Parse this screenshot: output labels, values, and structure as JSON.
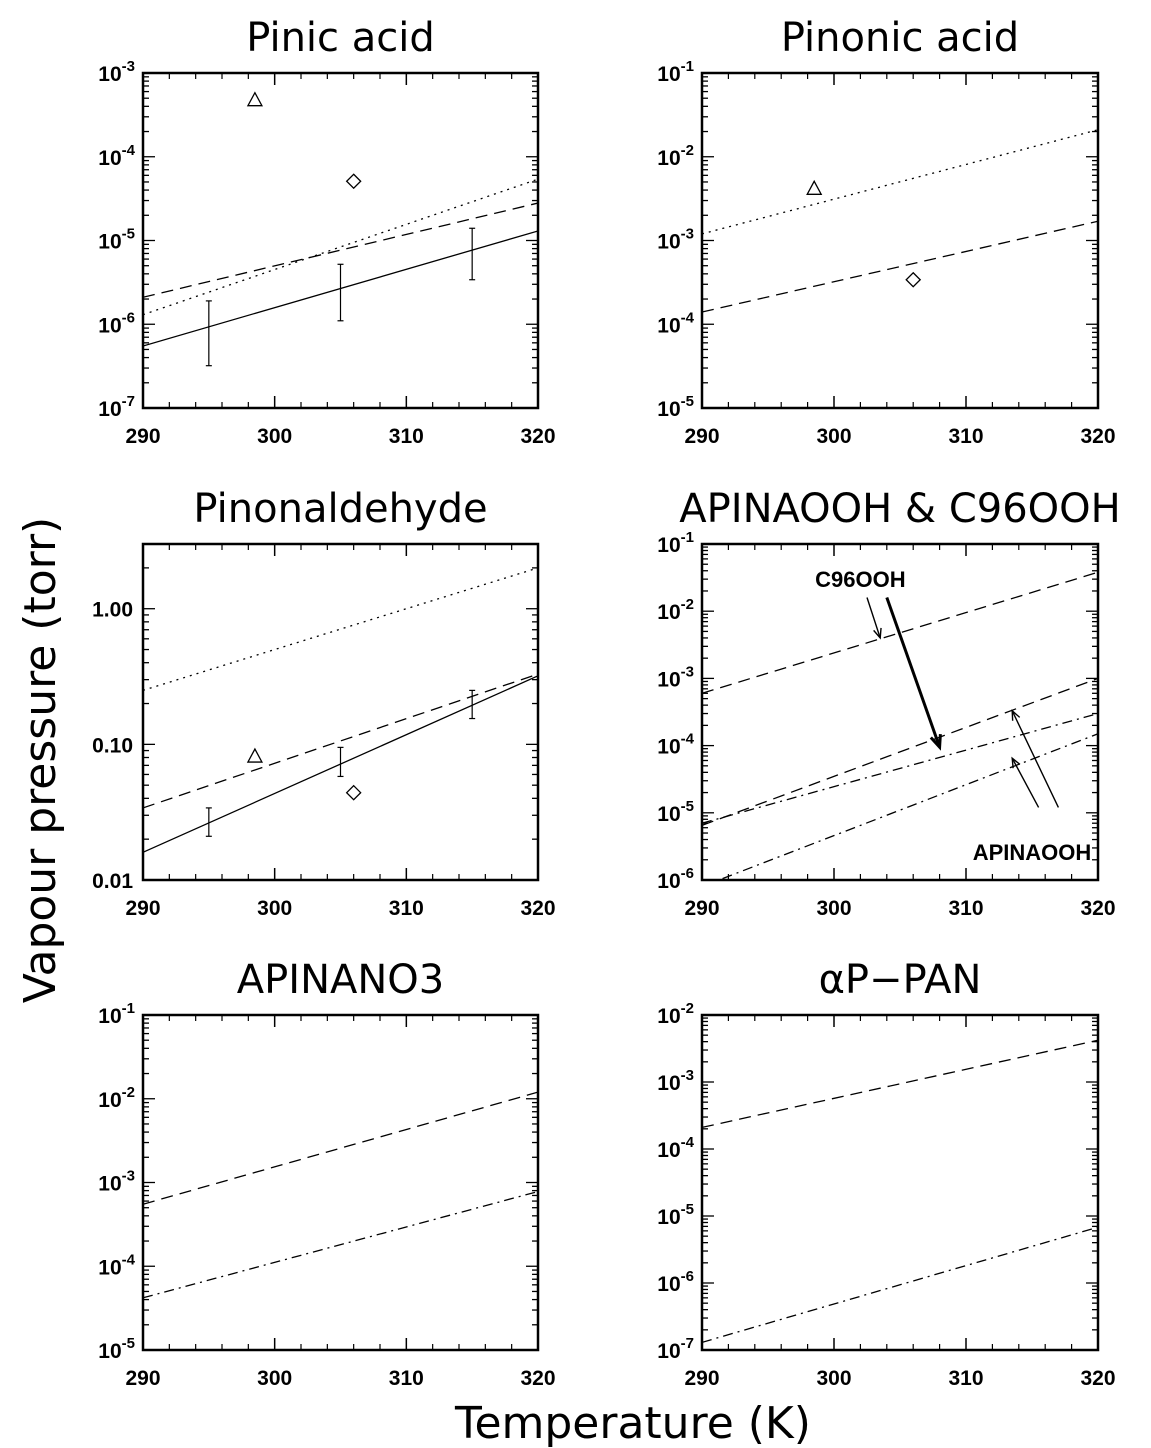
{
  "figure": {
    "xlabel": "Temperature (K)",
    "ylabel": "Vapour pressure (torr)"
  },
  "chart_data": [
    {
      "type": "line",
      "title": "Pinic acid",
      "xlim": [
        290,
        320
      ],
      "ylim": [
        1e-07,
        0.001
      ],
      "yscale": "log",
      "ytick_format": "power",
      "x_ticks": [
        "290",
        "300",
        "310",
        "320"
      ],
      "series": [
        {
          "style": "solid",
          "x": [
            290,
            320
          ],
          "y": [
            5.5e-07,
            1.3e-05
          ]
        },
        {
          "style": "dashed",
          "x": [
            290,
            320
          ],
          "y": [
            2.1e-06,
            2.8e-05
          ]
        },
        {
          "style": "dotted",
          "x": [
            290,
            320
          ],
          "y": [
            1.3e-06,
            5.4e-05
          ]
        }
      ],
      "markers": [
        {
          "shape": "triangle",
          "x": 298.5,
          "y": 0.00048
        },
        {
          "shape": "diamond",
          "x": 306,
          "y": 5.1e-05
        }
      ],
      "errorbars": [
        {
          "x": 295,
          "low": 3.2e-07,
          "high": 1.9e-06
        },
        {
          "x": 305,
          "low": 1.1e-06,
          "high": 5.2e-06
        },
        {
          "x": 315,
          "low": 3.4e-06,
          "high": 1.4e-05
        }
      ]
    },
    {
      "type": "line",
      "title": "Pinonic acid",
      "xlim": [
        290,
        320
      ],
      "ylim": [
        1e-05,
        0.1
      ],
      "yscale": "log",
      "ytick_format": "power",
      "x_ticks": [
        "290",
        "300",
        "310",
        "320"
      ],
      "series": [
        {
          "style": "dashed",
          "x": [
            290,
            320
          ],
          "y": [
            0.00014,
            0.0017
          ]
        },
        {
          "style": "dotted",
          "x": [
            290,
            320
          ],
          "y": [
            0.0012,
            0.021
          ]
        }
      ],
      "markers": [
        {
          "shape": "triangle",
          "x": 298.5,
          "y": 0.0042
        },
        {
          "shape": "diamond",
          "x": 306,
          "y": 0.00034
        }
      ],
      "errorbars": []
    },
    {
      "type": "line",
      "title": "Pinonaldehyde",
      "xlim": [
        290,
        320
      ],
      "ylim": [
        0.01,
        3.0
      ],
      "yscale": "log",
      "ytick_format": "decimal",
      "y_ticks": [
        {
          "value": 0.01,
          "label": "0.01"
        },
        {
          "value": 0.1,
          "label": "0.10"
        },
        {
          "value": 1.0,
          "label": "1.00"
        }
      ],
      "x_ticks": [
        "290",
        "300",
        "310",
        "320"
      ],
      "series": [
        {
          "style": "solid",
          "x": [
            290,
            320
          ],
          "y": [
            0.016,
            0.32
          ]
        },
        {
          "style": "dashed",
          "x": [
            290,
            320
          ],
          "y": [
            0.034,
            0.33
          ]
        },
        {
          "style": "dotted",
          "x": [
            290,
            320
          ],
          "y": [
            0.25,
            2.0
          ]
        }
      ],
      "markers": [
        {
          "shape": "triangle",
          "x": 298.5,
          "y": 0.082
        },
        {
          "shape": "diamond",
          "x": 306,
          "y": 0.044
        }
      ],
      "errorbars": [
        {
          "x": 295,
          "low": 0.021,
          "high": 0.034
        },
        {
          "x": 305,
          "low": 0.058,
          "high": 0.095
        },
        {
          "x": 315,
          "low": 0.155,
          "high": 0.25
        }
      ]
    },
    {
      "type": "line",
      "title": "APINAOOH & C96OOH",
      "xlim": [
        290,
        320
      ],
      "ylim": [
        1e-06,
        0.1
      ],
      "yscale": "log",
      "ytick_format": "power",
      "x_ticks": [
        "290",
        "300",
        "310",
        "320"
      ],
      "series": [
        {
          "style": "dashed",
          "x": [
            290,
            320
          ],
          "y": [
            0.0006,
            0.038
          ]
        },
        {
          "style": "dashed",
          "x": [
            290,
            320
          ],
          "y": [
            6.5e-06,
            0.001
          ]
        },
        {
          "style": "dashdot",
          "x": [
            290,
            320
          ],
          "y": [
            7e-06,
            0.0003
          ]
        },
        {
          "style": "dashdot",
          "x": [
            290,
            320
          ],
          "y": [
            8e-07,
            0.00015
          ]
        }
      ],
      "annotations": [
        {
          "text": "C96OOH",
          "x": 302.0,
          "y": 0.023
        },
        {
          "text": "APINAOOH",
          "x": 315.0,
          "y": 2e-06
        }
      ],
      "arrows": [
        {
          "weight": "thin",
          "from": [
            302.5,
            0.016
          ],
          "to": [
            303.5,
            0.004
          ]
        },
        {
          "weight": "thick",
          "from": [
            304.0,
            0.016
          ],
          "to": [
            308.0,
            9.5e-05
          ]
        },
        {
          "weight": "thin",
          "from": [
            317.0,
            1.2e-05
          ],
          "to": [
            313.5,
            0.00033
          ]
        },
        {
          "weight": "thin",
          "from": [
            315.5,
            1.2e-05
          ],
          "to": [
            313.5,
            6.5e-05
          ]
        }
      ],
      "markers": [],
      "errorbars": []
    },
    {
      "type": "line",
      "title": "APINANO3",
      "xlim": [
        290,
        320
      ],
      "ylim": [
        1e-05,
        0.1
      ],
      "yscale": "log",
      "ytick_format": "power",
      "x_ticks": [
        "290",
        "300",
        "310",
        "320"
      ],
      "series": [
        {
          "style": "dashed",
          "x": [
            290,
            320
          ],
          "y": [
            0.00055,
            0.012
          ]
        },
        {
          "style": "dashdot",
          "x": [
            290,
            320
          ],
          "y": [
            4.2e-05,
            0.00078
          ]
        }
      ],
      "markers": [],
      "errorbars": []
    },
    {
      "type": "line",
      "title": "αP−PAN",
      "xlim": [
        290,
        320
      ],
      "ylim": [
        1e-07,
        0.01
      ],
      "yscale": "log",
      "ytick_format": "power",
      "x_ticks": [
        "290",
        "300",
        "310",
        "320"
      ],
      "series": [
        {
          "style": "dashed",
          "x": [
            290,
            320
          ],
          "y": [
            0.00021,
            0.0042
          ]
        },
        {
          "style": "dashdot",
          "x": [
            290,
            320
          ],
          "y": [
            1.3e-07,
            6.8e-06
          ]
        }
      ],
      "markers": [],
      "errorbars": []
    }
  ]
}
